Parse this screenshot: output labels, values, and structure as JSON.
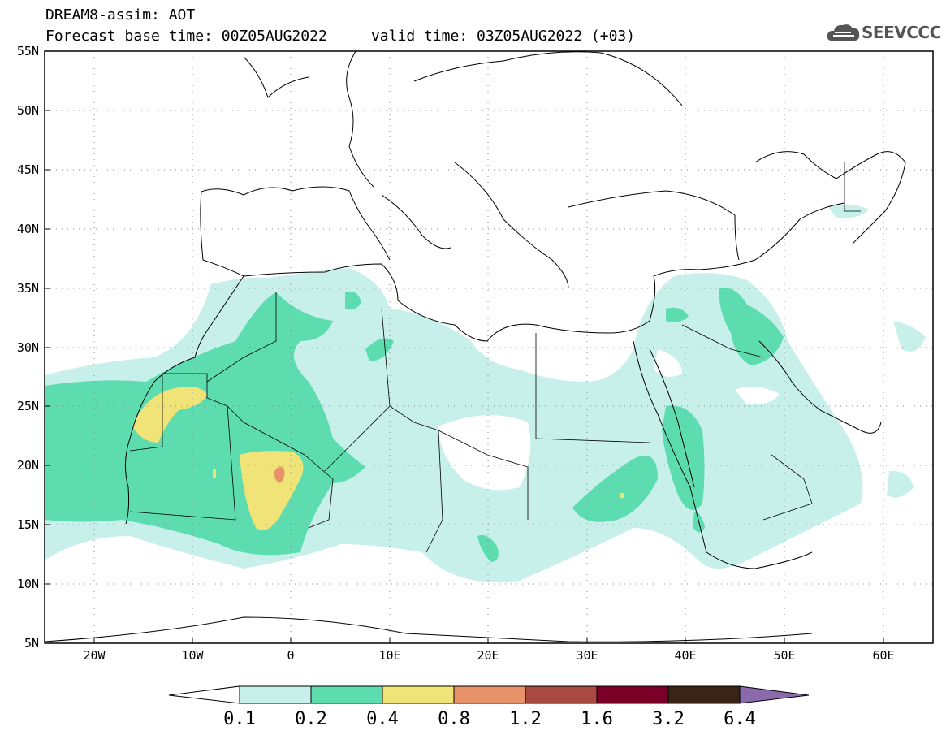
{
  "header": {
    "title": "DREAM8-assim: AOT",
    "subtitle": "Forecast base time: 00Z05AUG2022     valid time: 03Z05AUG2022 (+03)",
    "logo_text": "SEEVCCC",
    "logo_icon": "cloud-icon"
  },
  "map": {
    "projection": "lat-lon",
    "lon_range": [
      -25,
      65
    ],
    "lat_range": [
      5,
      55
    ],
    "x_ticks": [
      "20W",
      "10W",
      "0",
      "10E",
      "20E",
      "30E",
      "40E",
      "50E",
      "60E"
    ],
    "y_ticks": [
      "55N",
      "50N",
      "45N",
      "40N",
      "35N",
      "30N",
      "25N",
      "20N",
      "15N",
      "10N",
      "5N"
    ],
    "grid": "dotted"
  },
  "colorbar": {
    "labels": [
      "0.1",
      "0.2",
      "0.4",
      "0.8",
      "1.2",
      "1.6",
      "3.2",
      "6.4"
    ],
    "colors": [
      "#c8f0ea",
      "#5ddcb0",
      "#f0e478",
      "#e8926a",
      "#a84a40",
      "#7a0028",
      "#3a2416",
      "#8a6aaa"
    ]
  },
  "colors": {
    "level_0_1": "#c8f0ea",
    "level_0_2": "#5ddcb0",
    "level_0_4": "#f0e478",
    "level_0_8": "#e8926a"
  }
}
